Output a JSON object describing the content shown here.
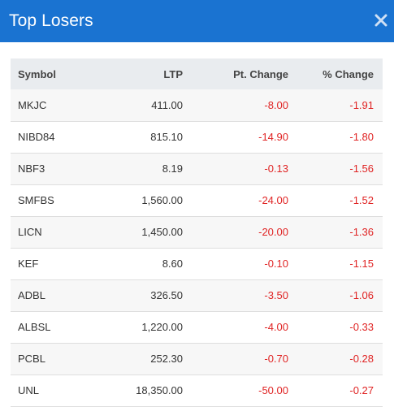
{
  "header": {
    "title": "Top Losers"
  },
  "table": {
    "columns": [
      "Symbol",
      "LTP",
      "Pt. Change",
      "% Change"
    ],
    "rows": [
      {
        "symbol": "MKJC",
        "ltp": "411.00",
        "pt_change": "-8.00",
        "pct_change": "-1.91"
      },
      {
        "symbol": "NIBD84",
        "ltp": "815.10",
        "pt_change": "-14.90",
        "pct_change": "-1.80"
      },
      {
        "symbol": "NBF3",
        "ltp": "8.19",
        "pt_change": "-0.13",
        "pct_change": "-1.56"
      },
      {
        "symbol": "SMFBS",
        "ltp": "1,560.00",
        "pt_change": "-24.00",
        "pct_change": "-1.52"
      },
      {
        "symbol": "LICN",
        "ltp": "1,450.00",
        "pt_change": "-20.00",
        "pct_change": "-1.36"
      },
      {
        "symbol": "KEF",
        "ltp": "8.60",
        "pt_change": "-0.10",
        "pct_change": "-1.15"
      },
      {
        "symbol": "ADBL",
        "ltp": "326.50",
        "pt_change": "-3.50",
        "pct_change": "-1.06"
      },
      {
        "symbol": "ALBSL",
        "ltp": "1,220.00",
        "pt_change": "-4.00",
        "pct_change": "-0.33"
      },
      {
        "symbol": "PCBL",
        "ltp": "252.30",
        "pt_change": "-0.70",
        "pct_change": "-0.28"
      },
      {
        "symbol": "UNL",
        "ltp": "18,350.00",
        "pt_change": "-50.00",
        "pct_change": "-0.27"
      }
    ]
  },
  "colors": {
    "header_bg": "#1a73d1",
    "negative": "#e02424"
  },
  "icons": {
    "close": "close-icon"
  }
}
